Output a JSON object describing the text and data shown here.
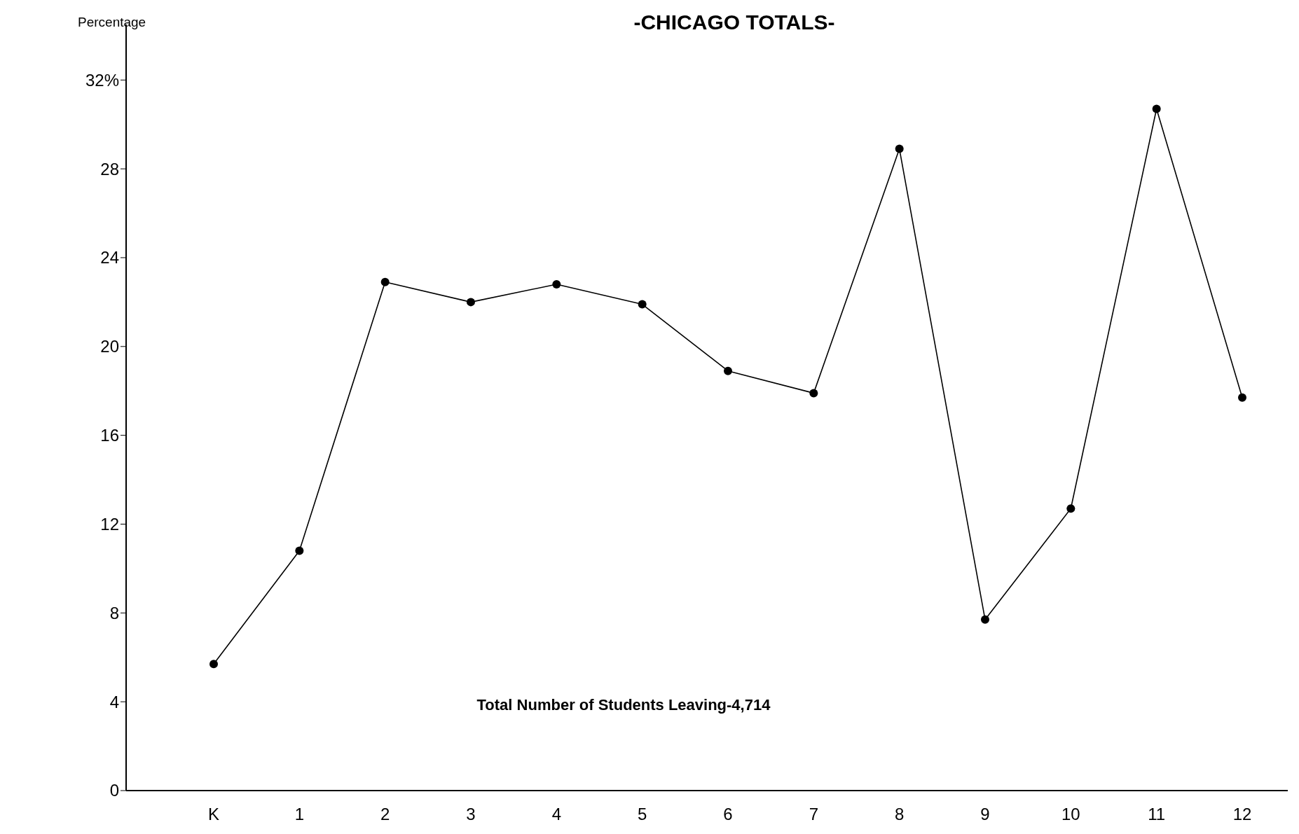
{
  "chart_data": {
    "type": "line",
    "title": "-CHICAGO TOTALS-",
    "ylabel": "Percentage",
    "categories": [
      "K",
      "1",
      "2",
      "3",
      "4",
      "5",
      "6",
      "7",
      "8",
      "9",
      "10",
      "11",
      "12"
    ],
    "values": [
      5.7,
      10.8,
      22.9,
      22.0,
      22.8,
      21.9,
      18.9,
      17.9,
      28.9,
      7.7,
      12.7,
      30.7,
      17.7
    ],
    "color": "#000000",
    "marker": "circle",
    "line_style": "solid",
    "grid": false,
    "ylim": [
      0,
      34.5
    ],
    "yticks": [
      0,
      4,
      8,
      12,
      16,
      20,
      24,
      28,
      {
        "value": 32,
        "label": "32%"
      }
    ],
    "annotations": [
      "Total Number of Students Leaving-4,714"
    ]
  }
}
